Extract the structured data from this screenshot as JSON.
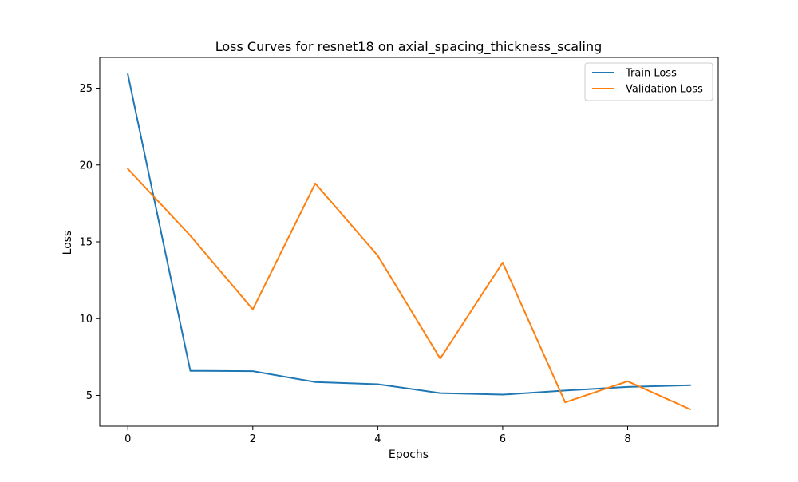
{
  "chart_data": {
    "type": "line",
    "title": "Loss Curves for resnet18 on axial_spacing_thickness_scaling",
    "xlabel": "Epochs",
    "ylabel": "Loss",
    "x": [
      0,
      1,
      2,
      3,
      4,
      5,
      6,
      7,
      8,
      9
    ],
    "series": [
      {
        "name": "Train Loss",
        "color": "#1f77b4",
        "values": [
          25.9,
          6.6,
          6.58,
          5.87,
          5.73,
          5.15,
          5.05,
          5.32,
          5.55,
          5.66
        ]
      },
      {
        "name": "Validation Loss",
        "color": "#ff7f0e",
        "values": [
          19.75,
          15.4,
          10.6,
          18.8,
          14.1,
          7.4,
          13.65,
          4.55,
          5.92,
          4.1
        ]
      }
    ],
    "xlim": [
      -0.45,
      9.45
    ],
    "ylim": [
      3.0,
      27.0
    ],
    "xticks": [
      0,
      2,
      4,
      6,
      8
    ],
    "yticks": [
      5,
      10,
      15,
      20,
      25
    ],
    "grid": false,
    "legend_position": "top-right"
  }
}
